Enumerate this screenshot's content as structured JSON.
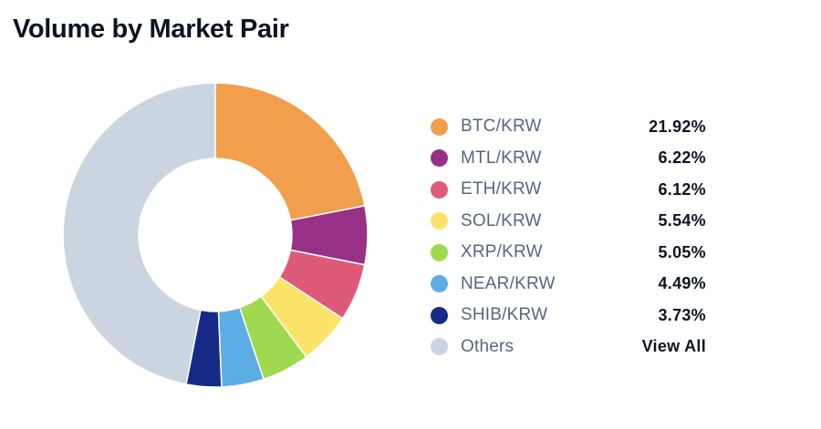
{
  "header": {
    "title": "Volume by Market Pair"
  },
  "chart_data": {
    "type": "pie",
    "style": "donut",
    "categories": [
      "BTC/KRW",
      "MTL/KRW",
      "ETH/KRW",
      "SOL/KRW",
      "XRP/KRW",
      "NEAR/KRW",
      "SHIB/KRW",
      "Others"
    ],
    "values": [
      21.92,
      6.22,
      6.12,
      5.54,
      5.05,
      4.49,
      3.73,
      46.93
    ],
    "colors": [
      "#f19f4d",
      "#963185",
      "#df5a78",
      "#fbe36a",
      "#9fd94f",
      "#5cade6",
      "#162b87",
      "#cbd5e1"
    ],
    "legend_placement": "right"
  },
  "legend": {
    "items": [
      {
        "label": "BTC/KRW",
        "value": "21.92%",
        "color": "#f19f4d"
      },
      {
        "label": "MTL/KRW",
        "value": "6.22%",
        "color": "#963185"
      },
      {
        "label": "ETH/KRW",
        "value": "6.12%",
        "color": "#df5a78"
      },
      {
        "label": "SOL/KRW",
        "value": "5.54%",
        "color": "#fbe36a"
      },
      {
        "label": "XRP/KRW",
        "value": "5.05%",
        "color": "#9fd94f"
      },
      {
        "label": "NEAR/KRW",
        "value": "4.49%",
        "color": "#5cade6"
      },
      {
        "label": "SHIB/KRW",
        "value": "3.73%",
        "color": "#162b87"
      },
      {
        "label": "Others",
        "value": "View All",
        "color": "#cbd5e1"
      }
    ]
  }
}
